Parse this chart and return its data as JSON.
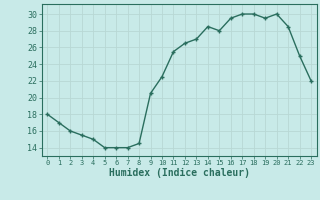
{
  "x": [
    0,
    1,
    2,
    3,
    4,
    5,
    6,
    7,
    8,
    9,
    10,
    11,
    12,
    13,
    14,
    15,
    16,
    17,
    18,
    19,
    20,
    21,
    22,
    23
  ],
  "y": [
    18,
    17,
    16,
    15.5,
    15,
    14,
    14,
    14,
    14.5,
    20.5,
    22.5,
    25.5,
    26.5,
    27,
    28.5,
    28,
    29.5,
    30,
    30,
    29.5,
    30,
    28.5,
    25,
    22
  ],
  "line_color": "#2a6e5e",
  "marker": "+",
  "marker_size": 3,
  "marker_lw": 1.0,
  "line_width": 1.0,
  "bg_color": "#c8eae8",
  "grid_color_major": "#b8d8d4",
  "grid_color_minor": "#d4eeec",
  "tick_color": "#2a6e5e",
  "xlabel": "Humidex (Indice chaleur)",
  "xlabel_fontsize": 7,
  "ylabel_ticks": [
    14,
    16,
    18,
    20,
    22,
    24,
    26,
    28,
    30
  ],
  "ytick_fontsize": 6,
  "xtick_fontsize": 5,
  "xlim": [
    -0.5,
    23.5
  ],
  "ylim": [
    13,
    31.2
  ]
}
